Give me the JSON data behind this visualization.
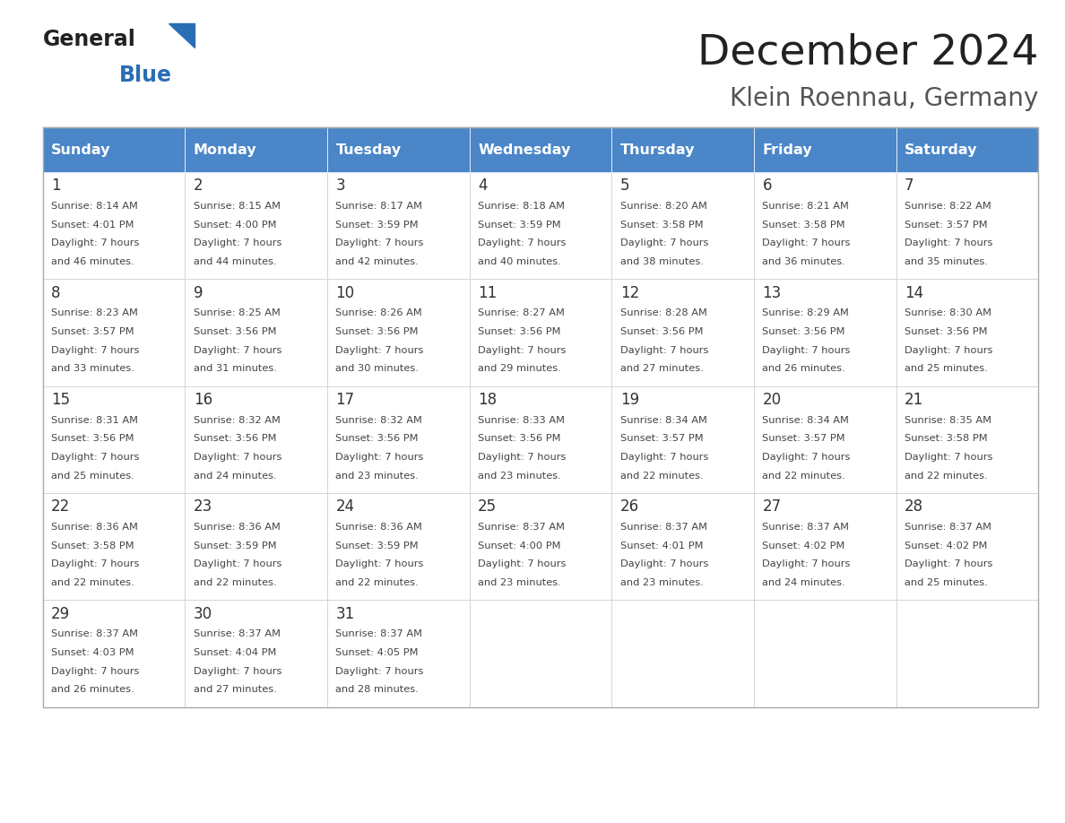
{
  "title": "December 2024",
  "subtitle": "Klein Roennau, Germany",
  "days_of_week": [
    "Sunday",
    "Monday",
    "Tuesday",
    "Wednesday",
    "Thursday",
    "Friday",
    "Saturday"
  ],
  "header_bg": "#4a86c8",
  "header_text": "#ffffff",
  "cell_bg": "#ffffff",
  "cell_border": "#cccccc",
  "day_num_color": "#333333",
  "info_color": "#444444",
  "title_color": "#222222",
  "subtitle_color": "#555555",
  "logo_general_color": "#222222",
  "logo_blue_color": "#2a6db5",
  "weeks": [
    [
      {
        "day": 1,
        "sunrise": "8:14 AM",
        "sunset": "4:01 PM",
        "daylight": "7 hours and 46 minutes."
      },
      {
        "day": 2,
        "sunrise": "8:15 AM",
        "sunset": "4:00 PM",
        "daylight": "7 hours and 44 minutes."
      },
      {
        "day": 3,
        "sunrise": "8:17 AM",
        "sunset": "3:59 PM",
        "daylight": "7 hours and 42 minutes."
      },
      {
        "day": 4,
        "sunrise": "8:18 AM",
        "sunset": "3:59 PM",
        "daylight": "7 hours and 40 minutes."
      },
      {
        "day": 5,
        "sunrise": "8:20 AM",
        "sunset": "3:58 PM",
        "daylight": "7 hours and 38 minutes."
      },
      {
        "day": 6,
        "sunrise": "8:21 AM",
        "sunset": "3:58 PM",
        "daylight": "7 hours and 36 minutes."
      },
      {
        "day": 7,
        "sunrise": "8:22 AM",
        "sunset": "3:57 PM",
        "daylight": "7 hours and 35 minutes."
      }
    ],
    [
      {
        "day": 8,
        "sunrise": "8:23 AM",
        "sunset": "3:57 PM",
        "daylight": "7 hours and 33 minutes."
      },
      {
        "day": 9,
        "sunrise": "8:25 AM",
        "sunset": "3:56 PM",
        "daylight": "7 hours and 31 minutes."
      },
      {
        "day": 10,
        "sunrise": "8:26 AM",
        "sunset": "3:56 PM",
        "daylight": "7 hours and 30 minutes."
      },
      {
        "day": 11,
        "sunrise": "8:27 AM",
        "sunset": "3:56 PM",
        "daylight": "7 hours and 29 minutes."
      },
      {
        "day": 12,
        "sunrise": "8:28 AM",
        "sunset": "3:56 PM",
        "daylight": "7 hours and 27 minutes."
      },
      {
        "day": 13,
        "sunrise": "8:29 AM",
        "sunset": "3:56 PM",
        "daylight": "7 hours and 26 minutes."
      },
      {
        "day": 14,
        "sunrise": "8:30 AM",
        "sunset": "3:56 PM",
        "daylight": "7 hours and 25 minutes."
      }
    ],
    [
      {
        "day": 15,
        "sunrise": "8:31 AM",
        "sunset": "3:56 PM",
        "daylight": "7 hours and 25 minutes."
      },
      {
        "day": 16,
        "sunrise": "8:32 AM",
        "sunset": "3:56 PM",
        "daylight": "7 hours and 24 minutes."
      },
      {
        "day": 17,
        "sunrise": "8:32 AM",
        "sunset": "3:56 PM",
        "daylight": "7 hours and 23 minutes."
      },
      {
        "day": 18,
        "sunrise": "8:33 AM",
        "sunset": "3:56 PM",
        "daylight": "7 hours and 23 minutes."
      },
      {
        "day": 19,
        "sunrise": "8:34 AM",
        "sunset": "3:57 PM",
        "daylight": "7 hours and 22 minutes."
      },
      {
        "day": 20,
        "sunrise": "8:34 AM",
        "sunset": "3:57 PM",
        "daylight": "7 hours and 22 minutes."
      },
      {
        "day": 21,
        "sunrise": "8:35 AM",
        "sunset": "3:58 PM",
        "daylight": "7 hours and 22 minutes."
      }
    ],
    [
      {
        "day": 22,
        "sunrise": "8:36 AM",
        "sunset": "3:58 PM",
        "daylight": "7 hours and 22 minutes."
      },
      {
        "day": 23,
        "sunrise": "8:36 AM",
        "sunset": "3:59 PM",
        "daylight": "7 hours and 22 minutes."
      },
      {
        "day": 24,
        "sunrise": "8:36 AM",
        "sunset": "3:59 PM",
        "daylight": "7 hours and 22 minutes."
      },
      {
        "day": 25,
        "sunrise": "8:37 AM",
        "sunset": "4:00 PM",
        "daylight": "7 hours and 23 minutes."
      },
      {
        "day": 26,
        "sunrise": "8:37 AM",
        "sunset": "4:01 PM",
        "daylight": "7 hours and 23 minutes."
      },
      {
        "day": 27,
        "sunrise": "8:37 AM",
        "sunset": "4:02 PM",
        "daylight": "7 hours and 24 minutes."
      },
      {
        "day": 28,
        "sunrise": "8:37 AM",
        "sunset": "4:02 PM",
        "daylight": "7 hours and 25 minutes."
      }
    ],
    [
      {
        "day": 29,
        "sunrise": "8:37 AM",
        "sunset": "4:03 PM",
        "daylight": "7 hours and 26 minutes."
      },
      {
        "day": 30,
        "sunrise": "8:37 AM",
        "sunset": "4:04 PM",
        "daylight": "7 hours and 27 minutes."
      },
      {
        "day": 31,
        "sunrise": "8:37 AM",
        "sunset": "4:05 PM",
        "daylight": "7 hours and 28 minutes."
      },
      null,
      null,
      null,
      null
    ]
  ]
}
